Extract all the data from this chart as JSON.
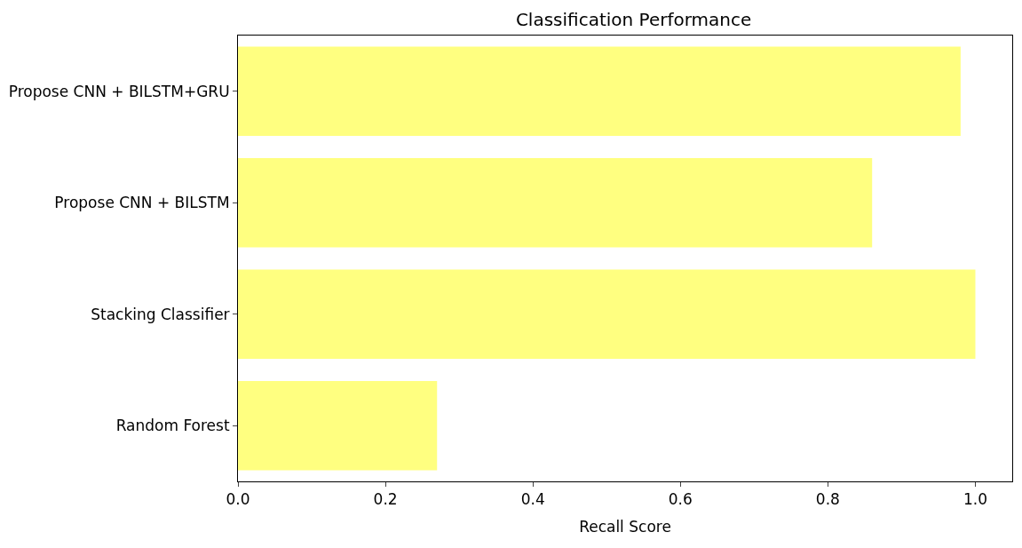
{
  "chart_data": {
    "type": "bar",
    "orientation": "horizontal",
    "title": "Classification Performance",
    "xlabel": "Recall Score",
    "categories": [
      "Propose CNN + BILSTM+GRU",
      "Propose CNN + BILSTM",
      "Stacking Classifier",
      "Random Forest"
    ],
    "values": [
      0.98,
      0.86,
      1.0,
      0.27
    ],
    "color": "#ffff80",
    "xlim": [
      0,
      1.05
    ],
    "xticks": [
      {
        "value": 0,
        "label": "0.0"
      },
      {
        "value": 0.2,
        "label": "0.2"
      },
      {
        "value": 0.4,
        "label": "0.4"
      },
      {
        "value": 0.6,
        "label": "0.6"
      },
      {
        "value": 0.8,
        "label": "0.8"
      },
      {
        "value": 1.0,
        "label": "1.0"
      }
    ]
  }
}
